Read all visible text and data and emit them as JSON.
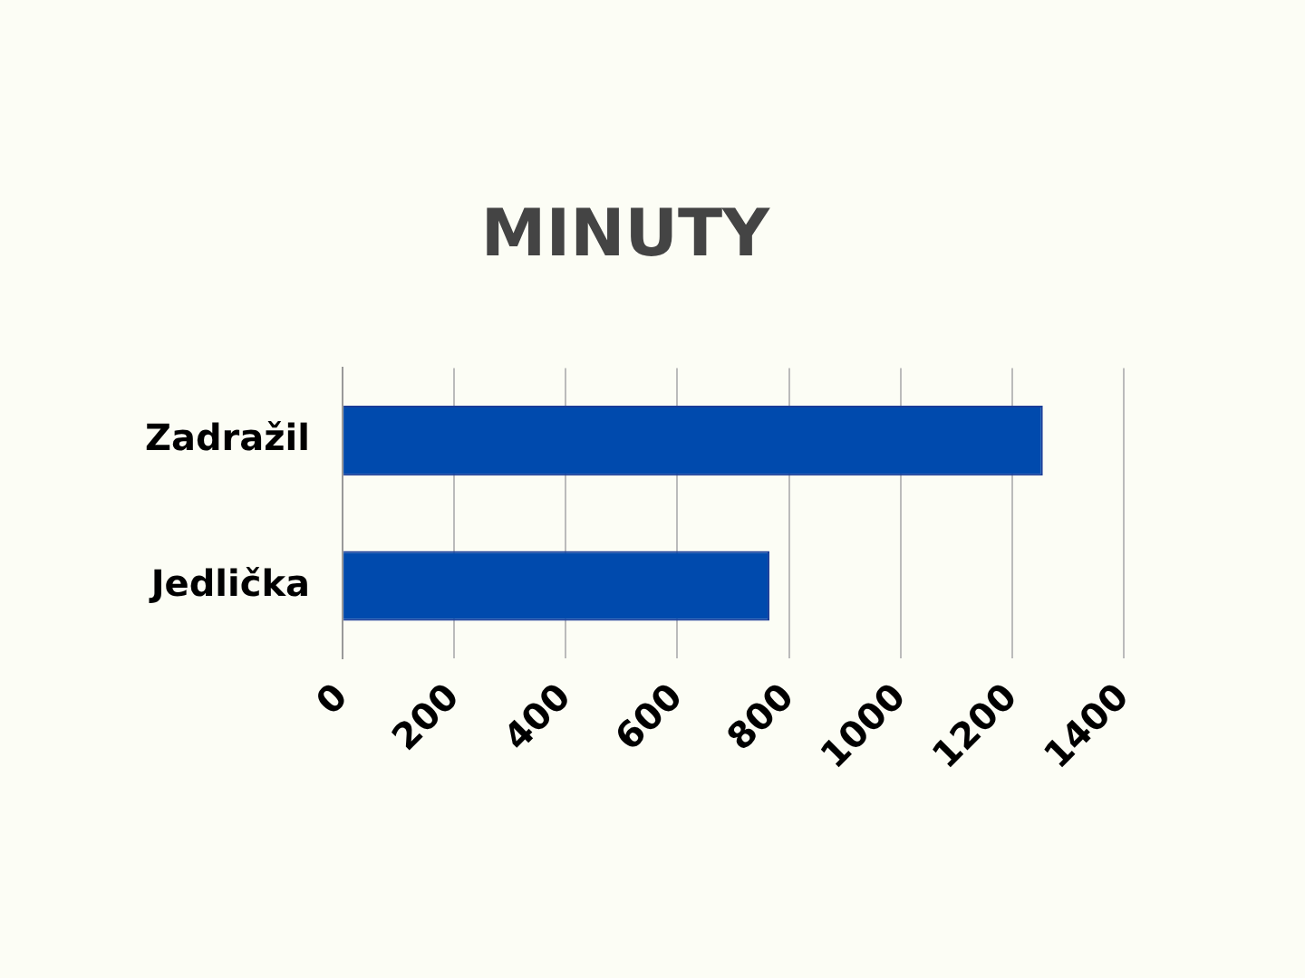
{
  "chart_data": {
    "type": "bar",
    "orientation": "horizontal",
    "title": "MINUTY",
    "categories": [
      "Zadražil",
      "Jedlička"
    ],
    "values": [
      1255,
      765
    ],
    "color": "#004aad",
    "xlim": [
      0,
      1400
    ],
    "xticks": [
      0,
      200,
      400,
      600,
      800,
      1000,
      1200,
      1400
    ],
    "grid": "x",
    "legend": false
  }
}
